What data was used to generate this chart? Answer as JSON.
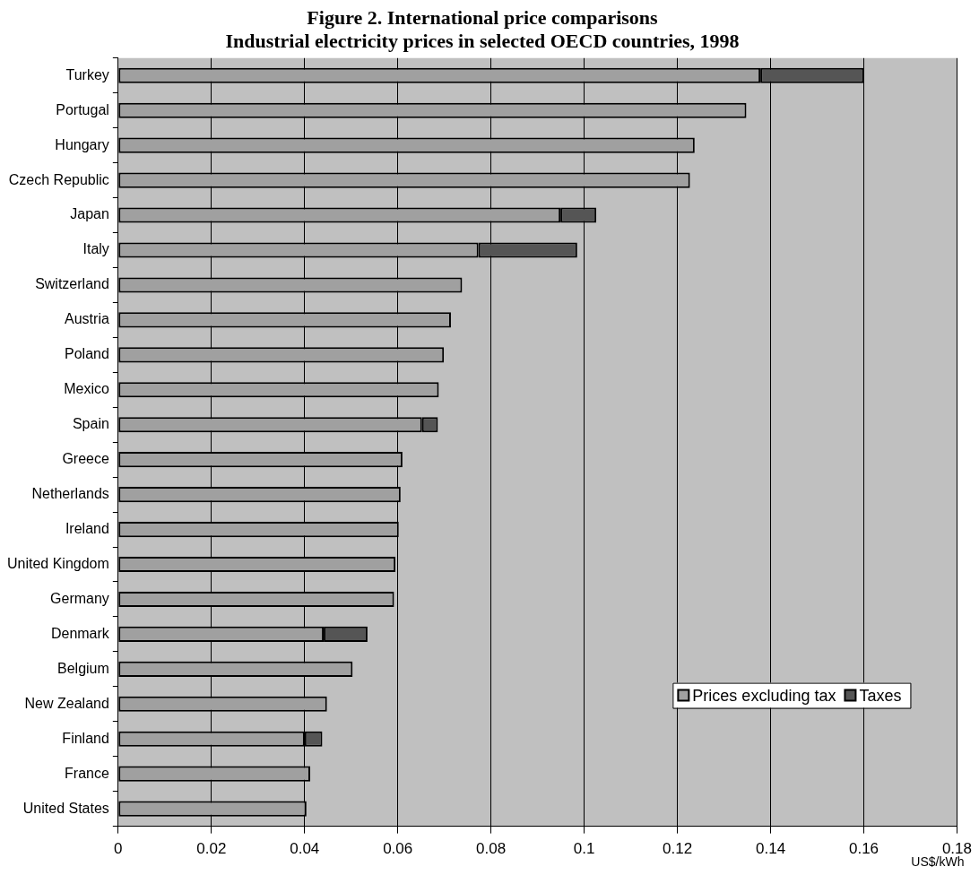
{
  "chart_data": {
    "type": "bar",
    "orientation": "horizontal",
    "stacked": true,
    "title": "Figure 2. International price comparisons",
    "subtitle": "Industrial electricity prices in selected OECD countries, 1998",
    "xlabel": "US$/kWh",
    "categories": [
      "Turkey",
      "Portugal",
      "Hungary",
      "Czech Republic",
      "Japan",
      "Italy",
      "Switzerland",
      "Austria",
      "Poland",
      "Mexico",
      "Spain",
      "Greece",
      "Netherlands",
      "Ireland",
      "United Kingdom",
      "Germany",
      "Denmark",
      "Belgium",
      "New Zealand",
      "Finland",
      "France",
      "United States"
    ],
    "series": [
      {
        "name": "Prices excluding tax",
        "color": "#a0a0a0",
        "values": [
          0.1378,
          0.1348,
          0.1237,
          0.1227,
          0.0949,
          0.0773,
          0.0738,
          0.0714,
          0.0699,
          0.0688,
          0.0652,
          0.061,
          0.0606,
          0.0602,
          0.0595,
          0.0592,
          0.0441,
          0.0503,
          0.0448,
          0.04,
          0.0412,
          0.0404
        ]
      },
      {
        "name": "Taxes",
        "color": "#555555",
        "values": [
          0.0222,
          null,
          null,
          null,
          0.0077,
          0.0212,
          null,
          null,
          null,
          null,
          0.0034,
          null,
          null,
          null,
          null,
          null,
          0.0094,
          null,
          null,
          0.0038,
          null,
          null
        ]
      }
    ],
    "xlim": [
      0,
      0.18
    ],
    "xticks": [
      0,
      0.02,
      0.04,
      0.06,
      0.08,
      0.1,
      0.12,
      0.14,
      0.16,
      0.18
    ],
    "grid": "x",
    "legend": "bottom right"
  }
}
